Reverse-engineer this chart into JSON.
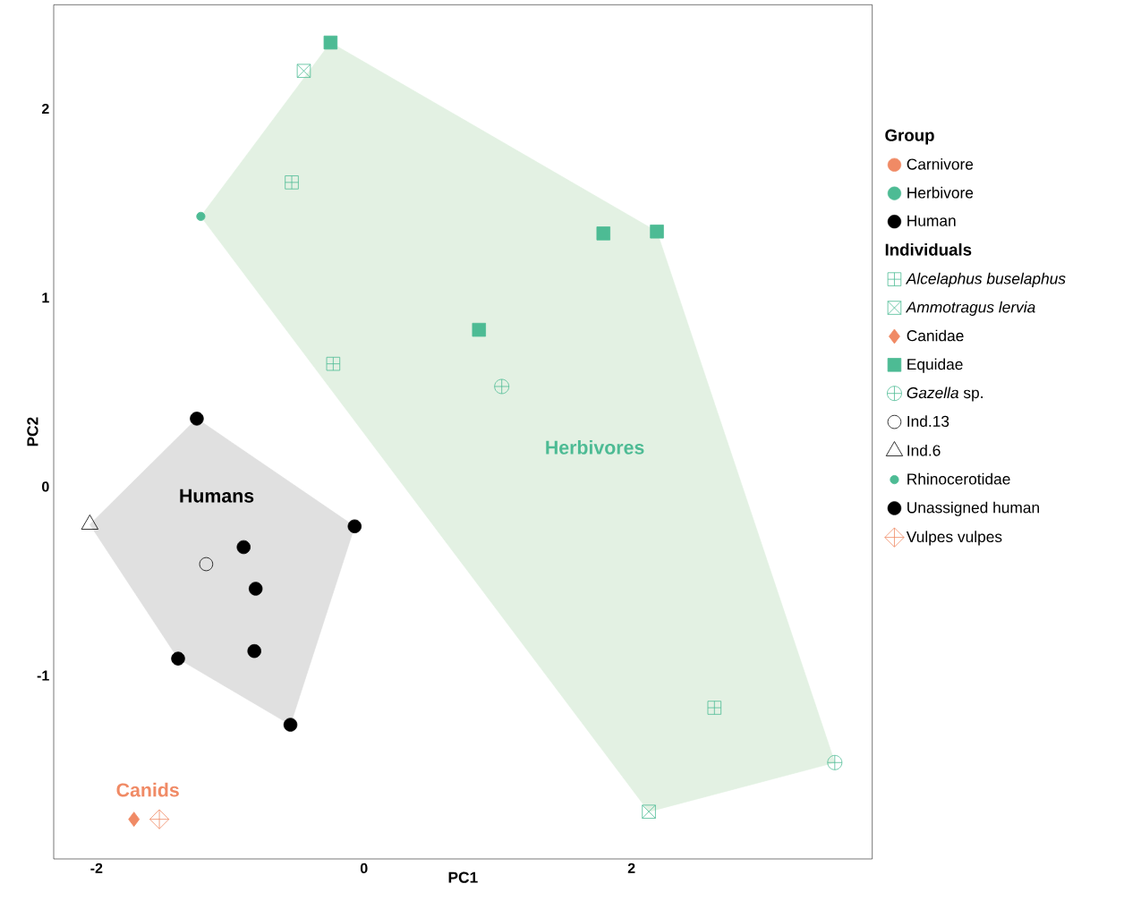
{
  "chart_data": {
    "type": "scatter",
    "xlabel": "PC1",
    "ylabel": "PC2",
    "xlim": [
      -2.32,
      3.8
    ],
    "ylim": [
      -1.97,
      2.55
    ],
    "xticks": [
      -2,
      0,
      2
    ],
    "yticks": [
      -1,
      0,
      1,
      2
    ],
    "grid": false,
    "legend": "right",
    "legend_title": "Group",
    "annotations": [
      "Carnivore",
      "Herbivore",
      "Human",
      "Individuals",
      "Humans",
      "Herbivores",
      "Canids"
    ],
    "series": [
      {
        "type": "area",
        "color": "#e3f1e3",
        "x": [
          -1.22,
          -0.25,
          2.19,
          3.52,
          2.13
        ],
        "values": [
          1.43,
          2.35,
          1.35,
          -1.46,
          -1.72
        ]
      },
      {
        "type": "area",
        "color": "#e0e0e0",
        "x": [
          -1.25,
          -0.07,
          -0.55,
          -1.39,
          -2.05
        ],
        "values": [
          0.36,
          -0.21,
          -1.26,
          -0.91,
          -0.2
        ]
      },
      {
        "name": "*Alcelaphus buselaphus*",
        "color": "#4dbb94",
        "x": [
          -0.54,
          -0.23,
          2.62
        ],
        "values": [
          1.61,
          0.65,
          -1.17
        ]
      },
      {
        "name": "*Ammotragus lervia*",
        "color": "#4dbb94",
        "x": [
          -0.45,
          2.13
        ],
        "values": [
          2.2,
          -1.72
        ]
      },
      {
        "name": "Canidae",
        "color": "#f08a65",
        "marker": "diamond",
        "x": [
          -1.72
        ],
        "values": [
          -1.76
        ]
      },
      {
        "name": "Equidae",
        "color": "#4dbb94",
        "marker": "square",
        "x": [
          -0.25,
          1.79,
          2.19,
          0.86
        ],
        "values": [
          2.35,
          1.34,
          1.35,
          0.83
        ]
      },
      {
        "name": "*Gazella* sp.",
        "color": "#4dbb94",
        "x": [
          1.03,
          3.52
        ],
        "values": [
          0.53,
          -1.46
        ]
      },
      {
        "name": "Ind.13",
        "color": "#000000",
        "marker": "circle-open",
        "x": [
          -1.18
        ],
        "values": [
          -0.41
        ]
      },
      {
        "name": "Ind.6",
        "color": "#000000",
        "marker": "triangle",
        "x": [
          -2.05
        ],
        "values": [
          -0.2
        ]
      },
      {
        "name": "Rhinocerotidae",
        "color": "#4dbb94",
        "marker": "circle-small",
        "x": [
          -1.22
        ],
        "values": [
          1.43
        ]
      },
      {
        "name": "Unassigned human",
        "color": "#000000",
        "marker": "circle",
        "x": [
          -1.25,
          -0.07,
          -0.9,
          -0.81,
          -0.82,
          -1.39,
          -0.55
        ],
        "values": [
          0.36,
          -0.21,
          -0.32,
          -0.54,
          -0.87,
          -0.91,
          -1.26
        ]
      },
      {
        "name": "Vulpes vulpes",
        "color": "#f08a65",
        "x": [
          -1.53
        ],
        "values": [
          -1.76
        ]
      }
    ]
  }
}
